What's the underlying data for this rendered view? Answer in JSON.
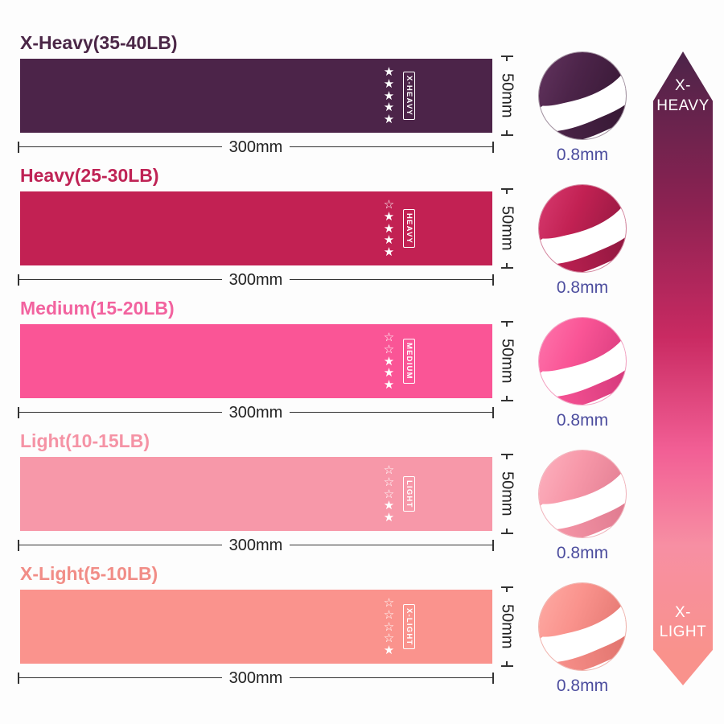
{
  "bands": [
    {
      "title": "X-Heavy(35-40LB)",
      "tag": "X-HEAVY",
      "stars": "★★★★★",
      "color": "#4c2449",
      "color_light": "#6b3a67",
      "color_dark": "#361834",
      "title_color": "#4b2747",
      "ring_color": "#a393a1",
      "width_label": "300mm",
      "height_label": "50mm",
      "thickness_label": "0.8mm"
    },
    {
      "title": "Heavy(25-30LB)",
      "tag": "HEAVY",
      "stars": "☆★★★★",
      "color": "#c22153",
      "color_light": "#e0457b",
      "color_dark": "#911840",
      "title_color": "#bf2355",
      "ring_color": "#d488a0",
      "width_label": "300mm",
      "height_label": "50mm",
      "thickness_label": "0.8mm"
    },
    {
      "title": "Medium(15-20LB)",
      "tag": "MEDIUM",
      "stars": "☆☆★★★",
      "color": "#fa5596",
      "color_light": "#ff82b5",
      "color_dark": "#d63a7c",
      "title_color": "#f2639f",
      "ring_color": "#f2a3c2",
      "width_label": "300mm",
      "height_label": "50mm",
      "thickness_label": "0.8mm"
    },
    {
      "title": "Light(10-15LB)",
      "tag": "LIGHT",
      "stars": "☆☆☆★★",
      "color": "#f798a9",
      "color_light": "#ffbcc8",
      "color_dark": "#e07b90",
      "title_color": "#f593a5",
      "ring_color": "#f0b4bc",
      "width_label": "300mm",
      "height_label": "50mm",
      "thickness_label": "0.8mm"
    },
    {
      "title": "X-Light(5-10LB)",
      "tag": "X-LIGHT",
      "stars": "☆☆☆☆★",
      "color": "#fa938d",
      "color_light": "#ffb5ae",
      "color_dark": "#e1746e",
      "title_color": "#f18d87",
      "ring_color": "#efb3ad",
      "width_label": "300mm",
      "height_label": "50mm",
      "thickness_label": "0.8mm"
    }
  ],
  "arrow": {
    "top_label": "X-HEAVY",
    "bottom_label": "X-LIGHT",
    "gradient": [
      {
        "color": "#4c2449",
        "at": "0%"
      },
      {
        "color": "#8e2252",
        "at": "25%"
      },
      {
        "color": "#c92a62",
        "at": "45%"
      },
      {
        "color": "#f25f95",
        "at": "63%"
      },
      {
        "color": "#f78fa3",
        "at": "78%"
      },
      {
        "color": "#f9928c",
        "at": "95%"
      }
    ]
  }
}
